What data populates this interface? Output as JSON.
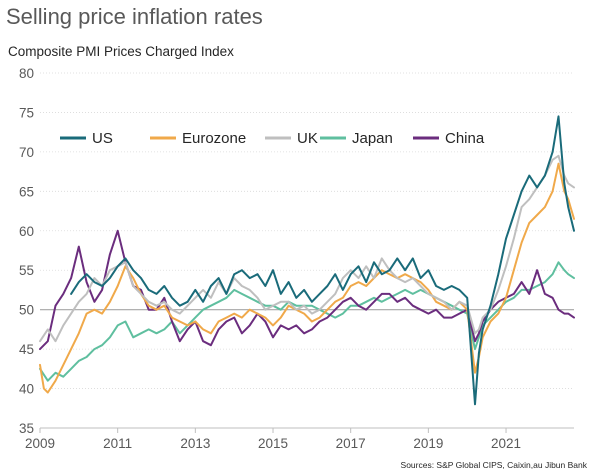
{
  "title": "Selling price inflation rates",
  "source": "Sources: S&P Global CIPS, Caixin,au Jibun Bank",
  "chart_data": {
    "type": "line",
    "ylabel": "Composite PMI Prices Charged Index",
    "xlabel": "",
    "ylim": [
      35,
      80
    ],
    "yticks": [
      35,
      40,
      45,
      50,
      55,
      60,
      65,
      70,
      75,
      80
    ],
    "xlim": [
      2009.0,
      2022.75
    ],
    "xticks": [
      2009,
      2011,
      2013,
      2015,
      2017,
      2019,
      2021
    ],
    "reference_line": 50,
    "grid": "horizontal",
    "legend_position": "top",
    "series": [
      {
        "name": "US",
        "color": "#1a6b7a",
        "x": [
          2009.8,
          2010.0,
          2010.2,
          2010.4,
          2010.6,
          2010.8,
          2011.0,
          2011.2,
          2011.4,
          2011.6,
          2011.8,
          2012.0,
          2012.2,
          2012.4,
          2012.6,
          2012.8,
          2013.0,
          2013.2,
          2013.4,
          2013.6,
          2013.8,
          2014.0,
          2014.2,
          2014.4,
          2014.6,
          2014.8,
          2015.0,
          2015.2,
          2015.4,
          2015.6,
          2015.8,
          2016.0,
          2016.2,
          2016.4,
          2016.6,
          2016.8,
          2017.0,
          2017.2,
          2017.4,
          2017.6,
          2017.8,
          2018.0,
          2018.2,
          2018.4,
          2018.6,
          2018.8,
          2019.0,
          2019.2,
          2019.4,
          2019.6,
          2019.8,
          2020.0,
          2020.2,
          2020.3,
          2020.4,
          2020.6,
          2020.8,
          2021.0,
          2021.2,
          2021.4,
          2021.6,
          2021.8,
          2022.0,
          2022.2,
          2022.35,
          2022.5,
          2022.6,
          2022.75
        ],
        "values": [
          52.0,
          53.5,
          54.5,
          53.5,
          53.0,
          54.0,
          55.5,
          56.5,
          55.0,
          54.0,
          52.5,
          52.0,
          53.0,
          51.5,
          50.5,
          51.0,
          52.5,
          51.0,
          53.0,
          54.0,
          52.0,
          54.5,
          55.0,
          54.0,
          54.5,
          53.0,
          55.0,
          52.0,
          53.5,
          51.5,
          52.5,
          51.0,
          52.0,
          53.0,
          54.5,
          52.5,
          54.5,
          55.5,
          53.5,
          56.0,
          54.5,
          55.0,
          56.5,
          55.0,
          56.5,
          54.0,
          55.0,
          53.0,
          52.5,
          53.0,
          52.5,
          51.5,
          38.0,
          44.5,
          47.5,
          50.5,
          54.5,
          59.0,
          62.0,
          65.0,
          67.0,
          65.5,
          67.0,
          70.0,
          74.5,
          66.0,
          63.0,
          60.0
        ]
      },
      {
        "name": "Eurozone",
        "color": "#f0a94a",
        "x": [
          2009.0,
          2009.1,
          2009.2,
          2009.4,
          2009.6,
          2009.8,
          2010.0,
          2010.2,
          2010.4,
          2010.6,
          2010.8,
          2011.0,
          2011.2,
          2011.4,
          2011.6,
          2011.8,
          2012.0,
          2012.2,
          2012.4,
          2012.6,
          2012.8,
          2013.0,
          2013.2,
          2013.4,
          2013.6,
          2013.8,
          2014.0,
          2014.2,
          2014.4,
          2014.6,
          2014.8,
          2015.0,
          2015.2,
          2015.4,
          2015.6,
          2015.8,
          2016.0,
          2016.2,
          2016.4,
          2016.6,
          2016.8,
          2017.0,
          2017.2,
          2017.4,
          2017.6,
          2017.8,
          2018.0,
          2018.2,
          2018.4,
          2018.6,
          2018.8,
          2019.0,
          2019.2,
          2019.4,
          2019.6,
          2019.8,
          2020.0,
          2020.2,
          2020.3,
          2020.4,
          2020.6,
          2020.8,
          2021.0,
          2021.2,
          2021.4,
          2021.6,
          2021.8,
          2022.0,
          2022.2,
          2022.35,
          2022.5,
          2022.6,
          2022.75
        ],
        "values": [
          43.0,
          40.0,
          39.5,
          41.0,
          43.0,
          45.0,
          47.0,
          49.5,
          50.0,
          49.5,
          51.0,
          53.0,
          55.5,
          54.0,
          52.0,
          50.5,
          50.0,
          50.5,
          49.0,
          48.5,
          48.0,
          48.5,
          47.5,
          47.0,
          48.5,
          49.0,
          49.5,
          49.0,
          50.0,
          49.5,
          49.0,
          48.0,
          49.0,
          50.5,
          50.0,
          49.5,
          48.5,
          49.0,
          50.0,
          51.0,
          51.5,
          53.0,
          53.5,
          53.0,
          54.0,
          55.0,
          54.5,
          54.0,
          54.5,
          54.0,
          53.5,
          52.5,
          51.0,
          50.5,
          50.0,
          51.0,
          50.0,
          42.0,
          44.0,
          46.5,
          48.5,
          49.5,
          51.5,
          55.0,
          58.5,
          61.0,
          62.0,
          63.0,
          65.0,
          68.5,
          65.0,
          64.0,
          61.5
        ]
      },
      {
        "name": "UK",
        "color": "#bfbfbf",
        "x": [
          2009.0,
          2009.2,
          2009.4,
          2009.6,
          2009.8,
          2010.0,
          2010.2,
          2010.4,
          2010.6,
          2010.8,
          2011.0,
          2011.2,
          2011.4,
          2011.6,
          2011.8,
          2012.0,
          2012.2,
          2012.4,
          2012.6,
          2012.8,
          2013.0,
          2013.2,
          2013.4,
          2013.6,
          2013.8,
          2014.0,
          2014.2,
          2014.4,
          2014.6,
          2014.8,
          2015.0,
          2015.2,
          2015.4,
          2015.6,
          2015.8,
          2016.0,
          2016.2,
          2016.4,
          2016.6,
          2016.8,
          2017.0,
          2017.2,
          2017.4,
          2017.6,
          2017.8,
          2018.0,
          2018.2,
          2018.4,
          2018.6,
          2018.8,
          2019.0,
          2019.2,
          2019.4,
          2019.6,
          2019.8,
          2020.0,
          2020.2,
          2020.3,
          2020.4,
          2020.6,
          2020.8,
          2021.0,
          2021.2,
          2021.4,
          2021.6,
          2021.8,
          2022.0,
          2022.2,
          2022.35,
          2022.5,
          2022.6,
          2022.75
        ],
        "values": [
          46.0,
          47.5,
          46.0,
          48.0,
          49.5,
          51.0,
          52.0,
          54.0,
          53.0,
          55.0,
          55.5,
          56.0,
          53.0,
          52.0,
          51.0,
          50.5,
          51.0,
          50.0,
          49.5,
          50.5,
          51.5,
          52.5,
          51.5,
          53.5,
          52.0,
          54.0,
          53.0,
          52.5,
          51.5,
          50.0,
          50.5,
          51.0,
          51.0,
          50.0,
          50.5,
          49.5,
          50.0,
          51.0,
          52.0,
          54.0,
          55.0,
          54.0,
          55.5,
          54.0,
          56.5,
          55.0,
          54.0,
          53.5,
          54.0,
          53.0,
          52.0,
          51.5,
          51.0,
          50.0,
          51.0,
          50.5,
          47.0,
          47.5,
          49.0,
          50.0,
          52.5,
          55.5,
          59.0,
          63.0,
          64.0,
          65.5,
          67.0,
          69.0,
          69.5,
          67.0,
          66.0,
          65.5
        ]
      },
      {
        "name": "Japan",
        "color": "#5fbf9f",
        "x": [
          2009.0,
          2009.2,
          2009.4,
          2009.6,
          2009.8,
          2010.0,
          2010.2,
          2010.4,
          2010.6,
          2010.8,
          2011.0,
          2011.2,
          2011.4,
          2011.6,
          2011.8,
          2012.0,
          2012.2,
          2012.4,
          2012.6,
          2012.8,
          2013.0,
          2013.2,
          2013.4,
          2013.6,
          2013.8,
          2014.0,
          2014.2,
          2014.4,
          2014.6,
          2014.8,
          2015.0,
          2015.2,
          2015.4,
          2015.6,
          2015.8,
          2016.0,
          2016.2,
          2016.4,
          2016.6,
          2016.8,
          2017.0,
          2017.2,
          2017.4,
          2017.6,
          2017.8,
          2018.0,
          2018.2,
          2018.4,
          2018.6,
          2018.8,
          2019.0,
          2019.2,
          2019.4,
          2019.6,
          2019.8,
          2020.0,
          2020.2,
          2020.3,
          2020.4,
          2020.6,
          2020.8,
          2021.0,
          2021.2,
          2021.4,
          2021.6,
          2021.8,
          2022.0,
          2022.2,
          2022.35,
          2022.5,
          2022.6,
          2022.75
        ],
        "values": [
          42.5,
          41.0,
          42.0,
          41.5,
          42.5,
          43.5,
          44.0,
          45.0,
          45.5,
          46.5,
          48.0,
          48.5,
          46.5,
          47.0,
          47.5,
          47.0,
          47.5,
          48.5,
          47.0,
          48.0,
          49.0,
          50.0,
          50.5,
          51.0,
          51.5,
          52.5,
          52.0,
          51.5,
          51.0,
          50.5,
          50.5,
          50.0,
          51.0,
          50.5,
          50.5,
          50.5,
          50.0,
          49.5,
          49.0,
          49.5,
          50.5,
          50.5,
          51.0,
          51.5,
          51.0,
          51.5,
          52.0,
          52.5,
          52.0,
          52.5,
          52.0,
          51.5,
          51.0,
          50.5,
          50.0,
          49.5,
          45.0,
          46.5,
          48.0,
          49.0,
          50.0,
          51.0,
          51.5,
          52.5,
          52.5,
          53.0,
          53.5,
          54.5,
          56.0,
          55.0,
          54.5,
          54.0
        ]
      },
      {
        "name": "China",
        "color": "#6b2d7e",
        "x": [
          2009.0,
          2009.2,
          2009.4,
          2009.6,
          2009.8,
          2010.0,
          2010.2,
          2010.4,
          2010.6,
          2010.8,
          2011.0,
          2011.2,
          2011.4,
          2011.6,
          2011.8,
          2012.0,
          2012.2,
          2012.4,
          2012.6,
          2012.8,
          2013.0,
          2013.2,
          2013.4,
          2013.6,
          2013.8,
          2014.0,
          2014.2,
          2014.4,
          2014.6,
          2014.8,
          2015.0,
          2015.2,
          2015.4,
          2015.6,
          2015.8,
          2016.0,
          2016.2,
          2016.4,
          2016.6,
          2016.8,
          2017.0,
          2017.2,
          2017.4,
          2017.6,
          2017.8,
          2018.0,
          2018.2,
          2018.4,
          2018.6,
          2018.8,
          2019.0,
          2019.2,
          2019.4,
          2019.6,
          2019.8,
          2020.0,
          2020.2,
          2020.3,
          2020.4,
          2020.6,
          2020.8,
          2021.0,
          2021.2,
          2021.4,
          2021.6,
          2021.8,
          2022.0,
          2022.2,
          2022.35,
          2022.5,
          2022.6,
          2022.75
        ],
        "values": [
          45.0,
          46.0,
          50.5,
          52.0,
          54.0,
          58.0,
          53.5,
          51.0,
          52.5,
          57.0,
          60.0,
          56.0,
          53.0,
          52.5,
          50.0,
          50.0,
          51.5,
          48.5,
          46.0,
          47.5,
          48.5,
          46.0,
          45.5,
          47.5,
          48.5,
          49.0,
          47.0,
          48.0,
          49.5,
          48.5,
          46.5,
          48.0,
          47.5,
          48.0,
          47.0,
          47.5,
          48.5,
          49.0,
          50.0,
          51.0,
          51.5,
          50.5,
          50.0,
          51.0,
          52.0,
          52.0,
          51.0,
          51.5,
          50.5,
          50.0,
          49.5,
          50.0,
          49.0,
          49.0,
          49.5,
          50.0,
          46.0,
          47.0,
          48.5,
          50.0,
          51.0,
          51.5,
          52.0,
          53.5,
          52.0,
          55.0,
          52.0,
          51.5,
          50.0,
          49.5,
          49.5,
          49.0
        ]
      }
    ]
  }
}
